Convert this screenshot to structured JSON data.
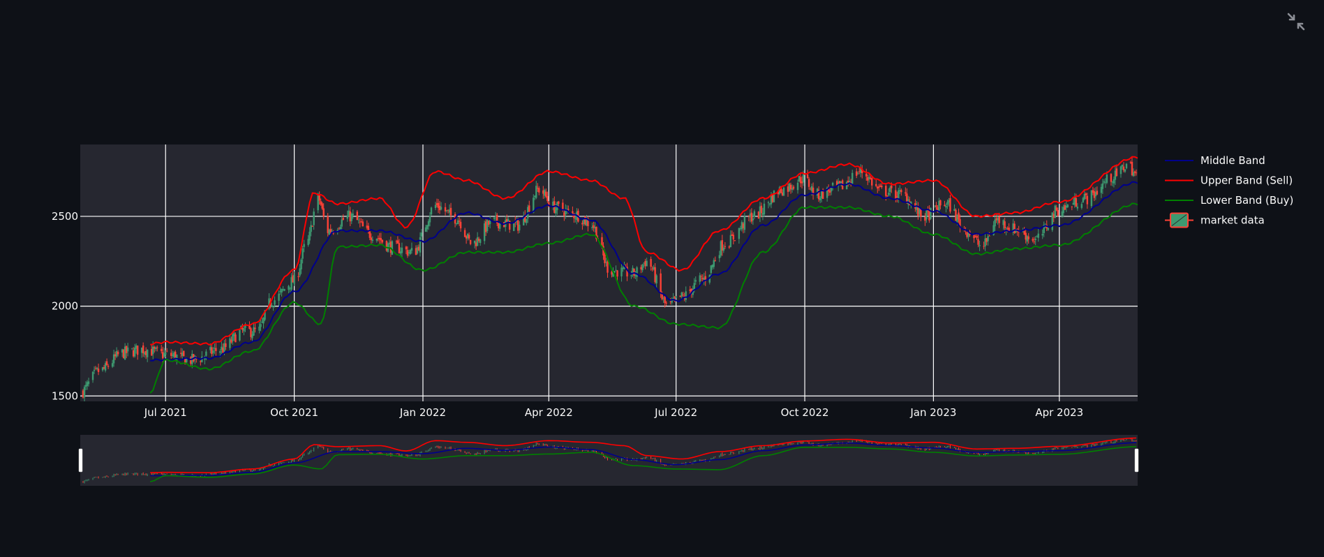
{
  "toolbar": {
    "fullscreen_icon": "exit-fullscreen-icon"
  },
  "colors": {
    "background": "#0e1117",
    "plot_bg": "#262730",
    "grid": "#ffffff",
    "middle": "#00008b",
    "upper": "#ff0000",
    "lower": "#008000",
    "candle_up": "#3d9970",
    "candle_down": "#ff4136",
    "text": "#fafafa"
  },
  "chart_data": {
    "type": "candlestick",
    "x_range": [
      "2021-05-01",
      "2023-05-27"
    ],
    "y_range": [
      1470,
      2900
    ],
    "grid": true,
    "legend_position": "right",
    "x_ticks": [
      {
        "date": "2021-07-01",
        "label": "Jul 2021"
      },
      {
        "date": "2021-10-01",
        "label": "Oct 2021"
      },
      {
        "date": "2022-01-01",
        "label": "Jan 2022"
      },
      {
        "date": "2022-04-01",
        "label": "Apr 2022"
      },
      {
        "date": "2022-07-01",
        "label": "Jul 2022"
      },
      {
        "date": "2022-10-01",
        "label": "Oct 2022"
      },
      {
        "date": "2023-01-01",
        "label": "Jan 2023"
      },
      {
        "date": "2023-04-01",
        "label": "Apr 2023"
      }
    ],
    "y_ticks": [
      {
        "value": 1500,
        "label": "1500"
      },
      {
        "value": 2000,
        "label": "2000"
      },
      {
        "value": 2500,
        "label": "2500"
      }
    ],
    "legend": [
      {
        "name": "Middle Band",
        "kind": "line",
        "color": "#00008b"
      },
      {
        "name": "Upper Band (Sell)",
        "kind": "line",
        "color": "#ff0000"
      },
      {
        "name": "Lower Band (Buy)",
        "kind": "line",
        "color": "#008000"
      },
      {
        "name": "market data",
        "kind": "candle",
        "color": "#3d9970"
      }
    ],
    "range_slider": true,
    "close_anchors": [
      [
        "2021-05-01",
        1520
      ],
      [
        "2021-05-15",
        1640
      ],
      [
        "2021-06-01",
        1740
      ],
      [
        "2021-06-15",
        1760
      ],
      [
        "2021-07-01",
        1730
      ],
      [
        "2021-07-20",
        1700
      ],
      [
        "2021-08-10",
        1760
      ],
      [
        "2021-08-25",
        1860
      ],
      [
        "2021-09-05",
        1860
      ],
      [
        "2021-09-15",
        2030
      ],
      [
        "2021-10-01",
        2140
      ],
      [
        "2021-10-10",
        2350
      ],
      [
        "2021-10-18",
        2600
      ],
      [
        "2021-10-25",
        2420
      ],
      [
        "2021-11-10",
        2500
      ],
      [
        "2021-11-25",
        2400
      ],
      [
        "2021-12-10",
        2330
      ],
      [
        "2021-12-25",
        2300
      ],
      [
        "2022-01-10",
        2560
      ],
      [
        "2022-01-25",
        2490
      ],
      [
        "2022-02-05",
        2350
      ],
      [
        "2022-02-20",
        2470
      ],
      [
        "2022-03-10",
        2450
      ],
      [
        "2022-03-25",
        2650
      ],
      [
        "2022-04-05",
        2550
      ],
      [
        "2022-04-20",
        2510
      ],
      [
        "2022-05-01",
        2460
      ],
      [
        "2022-05-15",
        2200
      ],
      [
        "2022-06-01",
        2180
      ],
      [
        "2022-06-10",
        2250
      ],
      [
        "2022-06-25",
        2000
      ],
      [
        "2022-07-05",
        2050
      ],
      [
        "2022-07-20",
        2150
      ],
      [
        "2022-08-05",
        2350
      ],
      [
        "2022-08-25",
        2500
      ],
      [
        "2022-09-15",
        2650
      ],
      [
        "2022-09-30",
        2710
      ],
      [
        "2022-10-10",
        2620
      ],
      [
        "2022-10-25",
        2660
      ],
      [
        "2022-11-10",
        2750
      ],
      [
        "2022-11-25",
        2640
      ],
      [
        "2022-12-10",
        2620
      ],
      [
        "2022-12-25",
        2500
      ],
      [
        "2023-01-10",
        2570
      ],
      [
        "2023-01-25",
        2420
      ],
      [
        "2023-02-05",
        2330
      ],
      [
        "2023-02-15",
        2480
      ],
      [
        "2023-02-28",
        2430
      ],
      [
        "2023-03-15",
        2370
      ],
      [
        "2023-04-01",
        2540
      ],
      [
        "2023-04-20",
        2600
      ],
      [
        "2023-05-10",
        2720
      ],
      [
        "2023-05-20",
        2790
      ],
      [
        "2023-05-27",
        2720
      ]
    ],
    "middle_band_anchors": [
      [
        "2021-06-20",
        1700
      ],
      [
        "2021-08-01",
        1710
      ],
      [
        "2021-09-01",
        1800
      ],
      [
        "2021-10-01",
        2080
      ],
      [
        "2021-11-01",
        2420
      ],
      [
        "2021-12-01",
        2420
      ],
      [
        "2022-01-01",
        2360
      ],
      [
        "2022-02-01",
        2520
      ],
      [
        "2022-03-01",
        2460
      ],
      [
        "2022-04-01",
        2560
      ],
      [
        "2022-05-01",
        2480
      ],
      [
        "2022-06-01",
        2180
      ],
      [
        "2022-07-01",
        2030
      ],
      [
        "2022-08-01",
        2180
      ],
      [
        "2022-09-01",
        2450
      ],
      [
        "2022-10-01",
        2620
      ],
      [
        "2022-11-01",
        2680
      ],
      [
        "2022-12-01",
        2600
      ],
      [
        "2023-01-01",
        2530
      ],
      [
        "2023-02-01",
        2400
      ],
      [
        "2023-03-01",
        2420
      ],
      [
        "2023-04-01",
        2450
      ],
      [
        "2023-05-27",
        2690
      ]
    ],
    "upper_band_anchors": [
      [
        "2021-06-20",
        1790
      ],
      [
        "2021-07-01",
        1800
      ],
      [
        "2021-08-01",
        1790
      ],
      [
        "2021-09-01",
        1900
      ],
      [
        "2021-10-01",
        2200
      ],
      [
        "2021-10-15",
        2630
      ],
      [
        "2021-11-01",
        2570
      ],
      [
        "2021-12-01",
        2600
      ],
      [
        "2021-12-20",
        2440
      ],
      [
        "2022-01-10",
        2750
      ],
      [
        "2022-02-01",
        2700
      ],
      [
        "2022-03-01",
        2600
      ],
      [
        "2022-04-01",
        2750
      ],
      [
        "2022-05-01",
        2700
      ],
      [
        "2022-05-25",
        2600
      ],
      [
        "2022-06-10",
        2300
      ],
      [
        "2022-07-05",
        2200
      ],
      [
        "2022-08-01",
        2420
      ],
      [
        "2022-09-01",
        2600
      ],
      [
        "2022-10-01",
        2740
      ],
      [
        "2022-11-01",
        2790
      ],
      [
        "2022-12-01",
        2680
      ],
      [
        "2023-01-01",
        2700
      ],
      [
        "2023-02-01",
        2500
      ],
      [
        "2023-03-01",
        2520
      ],
      [
        "2023-04-01",
        2580
      ],
      [
        "2023-05-27",
        2830
      ]
    ],
    "lower_band_anchors": [
      [
        "2021-06-20",
        1520
      ],
      [
        "2021-07-01",
        1700
      ],
      [
        "2021-08-01",
        1650
      ],
      [
        "2021-09-01",
        1750
      ],
      [
        "2021-10-01",
        2020
      ],
      [
        "2021-10-20",
        1900
      ],
      [
        "2021-11-01",
        2330
      ],
      [
        "2021-12-01",
        2340
      ],
      [
        "2022-01-01",
        2200
      ],
      [
        "2022-02-01",
        2300
      ],
      [
        "2022-03-01",
        2300
      ],
      [
        "2022-04-01",
        2350
      ],
      [
        "2022-05-01",
        2400
      ],
      [
        "2022-06-01",
        2000
      ],
      [
        "2022-07-01",
        1900
      ],
      [
        "2022-08-01",
        1880
      ],
      [
        "2022-09-01",
        2300
      ],
      [
        "2022-10-01",
        2550
      ],
      [
        "2022-11-01",
        2550
      ],
      [
        "2022-12-01",
        2500
      ],
      [
        "2023-01-01",
        2400
      ],
      [
        "2023-02-01",
        2290
      ],
      [
        "2023-03-01",
        2320
      ],
      [
        "2023-04-01",
        2340
      ],
      [
        "2023-05-27",
        2570
      ]
    ]
  }
}
